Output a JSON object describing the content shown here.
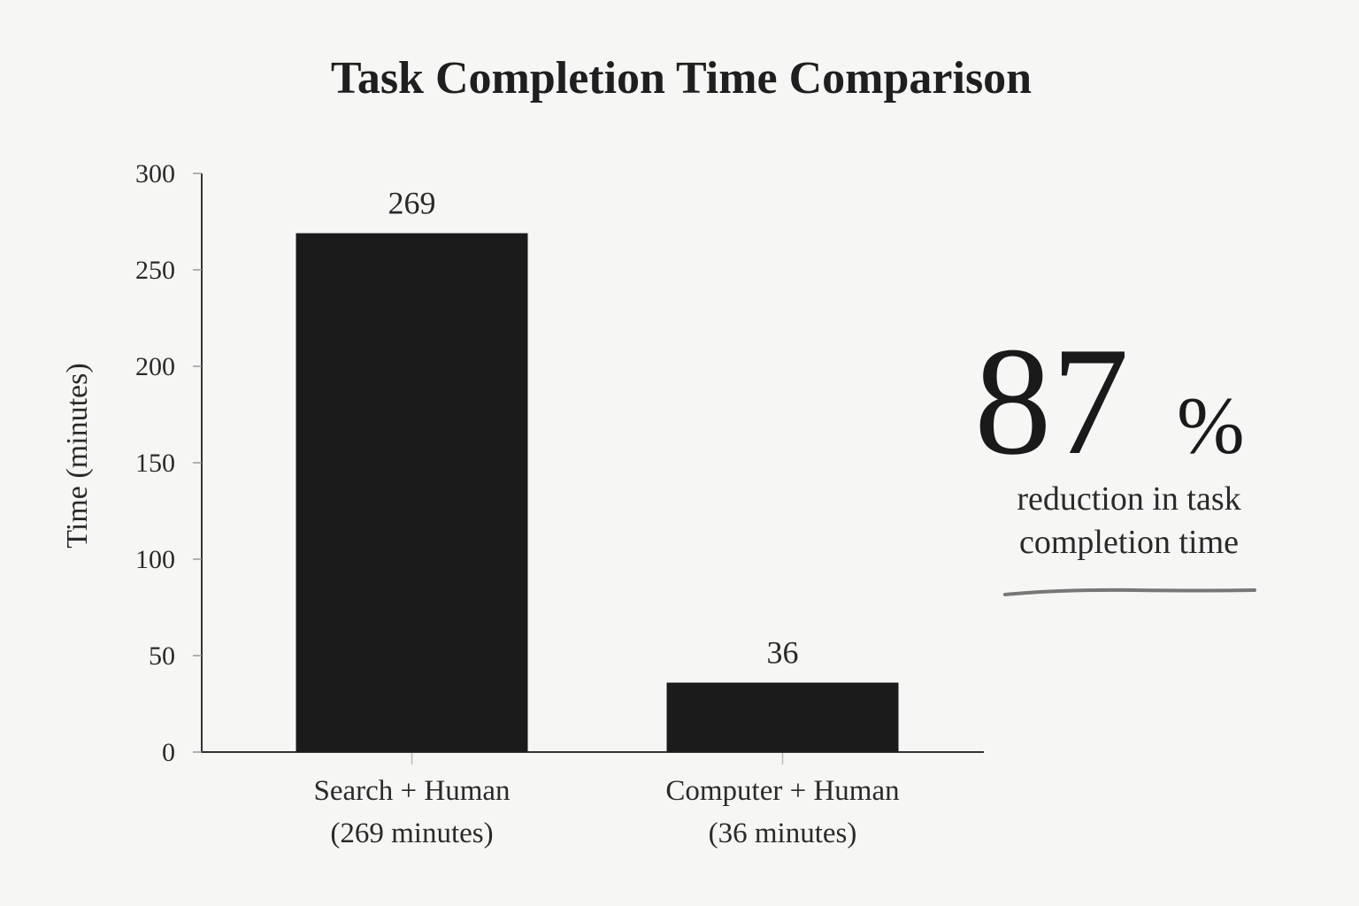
{
  "chart_data": {
    "type": "bar",
    "title": "Task Completion Time Comparison",
    "y_label": "Time (minutes)",
    "categories": [
      "Search + Human",
      "Computer + Human"
    ],
    "category_notes": [
      "(269 minutes)",
      "(36 minutes)"
    ],
    "values": [
      269,
      36
    ],
    "color": "#1b1b1b",
    "ylim": [
      0,
      300
    ],
    "yticks": [
      0,
      50,
      100,
      150,
      200,
      250,
      300
    ],
    "callout": {
      "number": 87,
      "unit": "%",
      "lines": [
        "reduction in task",
        "completion time"
      ]
    }
  }
}
